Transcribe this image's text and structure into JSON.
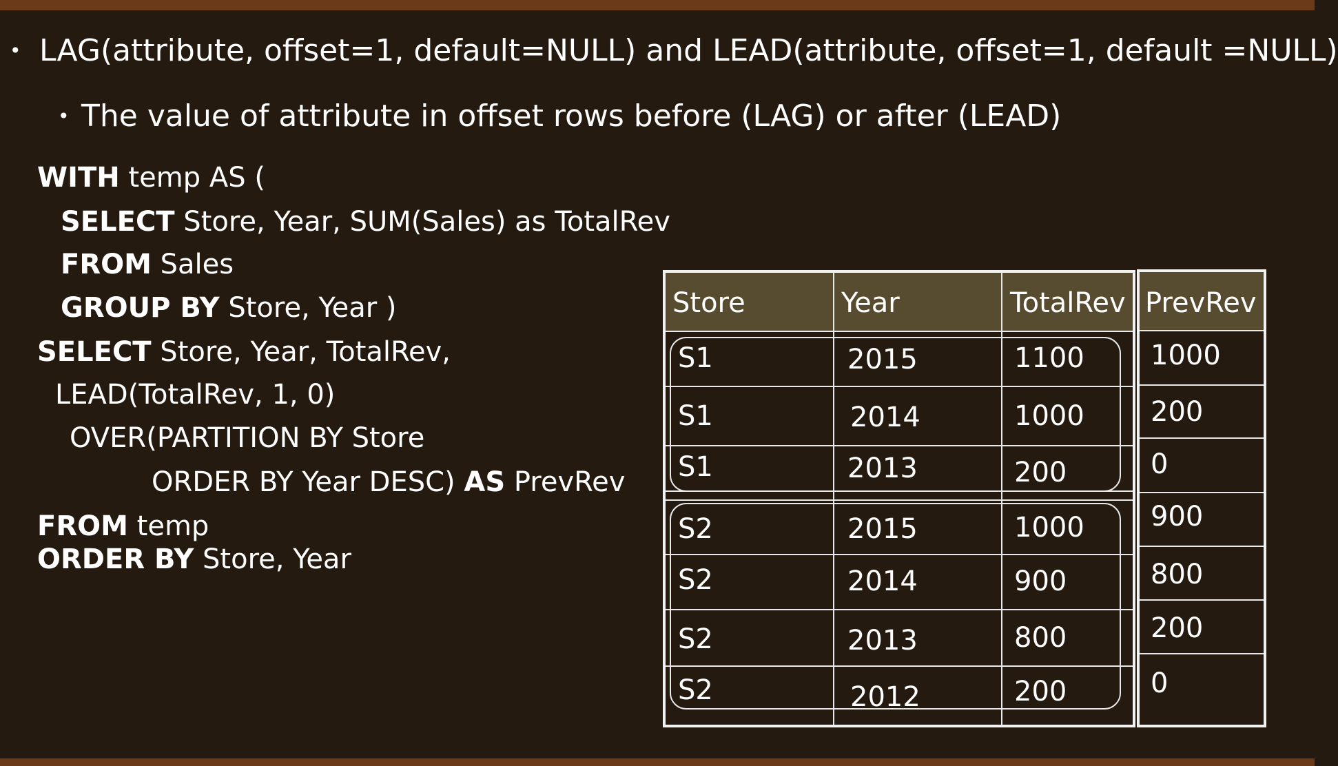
{
  "bullets": {
    "main": "LAG(attribute, offset=1, default=NULL) and LEAD(attribute, offset=1, default =NULL)",
    "sub": "The value of attribute in offset rows before (LAG) or after (LEAD)"
  },
  "sql": {
    "l1_kw": "WITH",
    "l1_rest": " temp AS (",
    "l2_kw": "SELECT",
    "l2_rest": " Store, Year, SUM(Sales) as TotalRev",
    "l3_kw": "FROM",
    "l3_rest": " Sales",
    "l4_kw": "GROUP BY",
    "l4_rest": " Store, Year )",
    "l5_kw": "SELECT",
    "l5_rest": " Store, Year, TotalRev,",
    "l6": "LEAD(TotalRev, 1, 0)",
    "l7": "OVER(PARTITION BY Store",
    "l8_a": "ORDER BY Year DESC) ",
    "l8_kw": "AS",
    "l8_rest": " PrevRev",
    "l9_kw": "FROM",
    "l9_rest": " temp",
    "l10_kw": "ORDER BY",
    "l10_rest": " Store, Year"
  },
  "table": {
    "headers": [
      "Store",
      "Year",
      "TotalRev",
      "PrevRev"
    ],
    "rows": [
      [
        "S1",
        "2015",
        "1100",
        "1000"
      ],
      [
        "S1",
        "2014",
        "1000",
        "200"
      ],
      [
        "S1",
        "2013",
        "200",
        "0"
      ],
      [
        "S2",
        "2015",
        "1000",
        "900"
      ],
      [
        "S2",
        "2014",
        "900",
        "800"
      ],
      [
        "S2",
        "2013",
        "800",
        "200"
      ],
      [
        "S2",
        "2012",
        "200",
        "0"
      ]
    ]
  },
  "colors": {
    "background": "#241a10",
    "band": "#6b3a18",
    "header_fill": "#574c2f",
    "text": "#ffffff"
  }
}
